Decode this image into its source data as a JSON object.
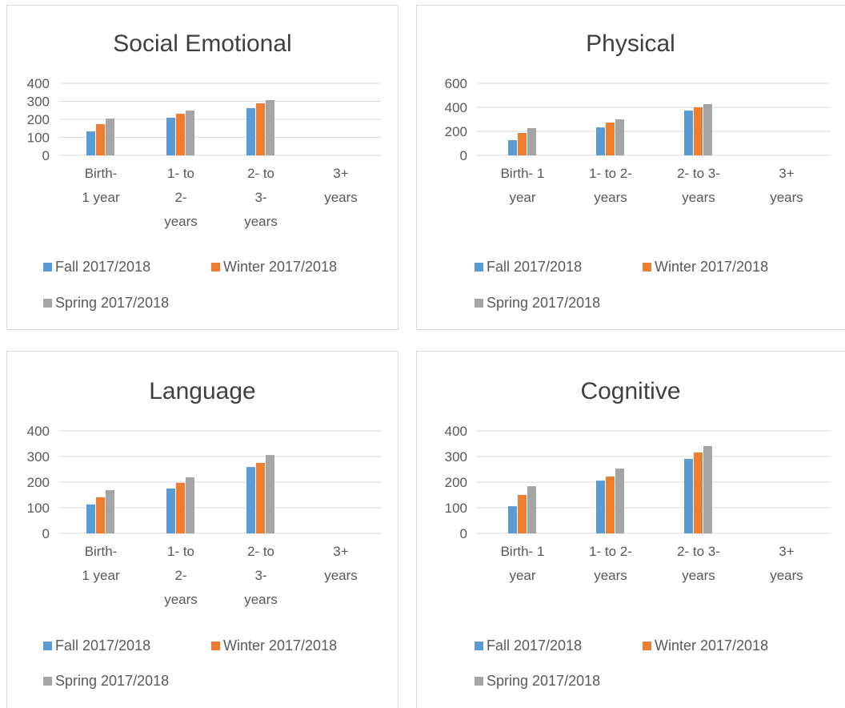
{
  "chart_data": [
    {
      "type": "bar",
      "title": "Social Emotional",
      "categories": [
        "Birth- 1 year",
        "1- to 2- years",
        "2- to 3- years",
        "3+ years"
      ],
      "series": [
        {
          "name": "Fall 2017/2018",
          "color": "#5b9bd5",
          "values": [
            133,
            209,
            262,
            null
          ]
        },
        {
          "name": "Winter 2017/2018",
          "color": "#ed7d31",
          "values": [
            173,
            231,
            289,
            null
          ]
        },
        {
          "name": "Spring 2017/2018",
          "color": "#a5a5a5",
          "values": [
            204,
            249,
            307,
            null
          ]
        }
      ],
      "ylim": [
        0,
        400
      ],
      "yticks": [
        0,
        100,
        200,
        300,
        400
      ],
      "grid": true
    },
    {
      "type": "bar",
      "title": "Physical",
      "categories": [
        "Birth- 1 year",
        "1- to 2- years",
        "2- to 3- years",
        "3+ years"
      ],
      "series": [
        {
          "name": "Fall 2017/2018",
          "color": "#5b9bd5",
          "values": [
            127,
            233,
            373,
            null
          ]
        },
        {
          "name": "Winter 2017/2018",
          "color": "#ed7d31",
          "values": [
            187,
            273,
            400,
            null
          ]
        },
        {
          "name": "Spring 2017/2018",
          "color": "#a5a5a5",
          "values": [
            227,
            300,
            427,
            null
          ]
        }
      ],
      "ylim": [
        0,
        600
      ],
      "yticks": [
        0,
        200,
        400,
        600
      ],
      "grid": true
    },
    {
      "type": "bar",
      "title": "Language",
      "categories": [
        "Birth- 1 year",
        "1- to 2- years",
        "2- to 3- years",
        "3+ years"
      ],
      "series": [
        {
          "name": "Fall 2017/2018",
          "color": "#5b9bd5",
          "values": [
            113,
            175,
            259,
            null
          ]
        },
        {
          "name": "Winter 2017/2018",
          "color": "#ed7d31",
          "values": [
            141,
            197,
            275,
            null
          ]
        },
        {
          "name": "Spring 2017/2018",
          "color": "#a5a5a5",
          "values": [
            169,
            219,
            306,
            null
          ]
        }
      ],
      "ylim": [
        0,
        400
      ],
      "yticks": [
        0,
        100,
        200,
        300,
        400
      ],
      "grid": true
    },
    {
      "type": "bar",
      "title": "Cognitive",
      "categories": [
        "Birth- 1 year",
        "1- to 2- years",
        "2- to 3- years",
        "3+ years"
      ],
      "series": [
        {
          "name": "Fall 2017/2018",
          "color": "#5b9bd5",
          "values": [
            106,
            206,
            291,
            null
          ]
        },
        {
          "name": "Winter 2017/2018",
          "color": "#ed7d31",
          "values": [
            150,
            222,
            316,
            null
          ]
        },
        {
          "name": "Spring 2017/2018",
          "color": "#a5a5a5",
          "values": [
            184,
            253,
            341,
            null
          ]
        }
      ],
      "ylim": [
        0,
        400
      ],
      "yticks": [
        0,
        100,
        200,
        300,
        400
      ],
      "grid": true
    }
  ]
}
